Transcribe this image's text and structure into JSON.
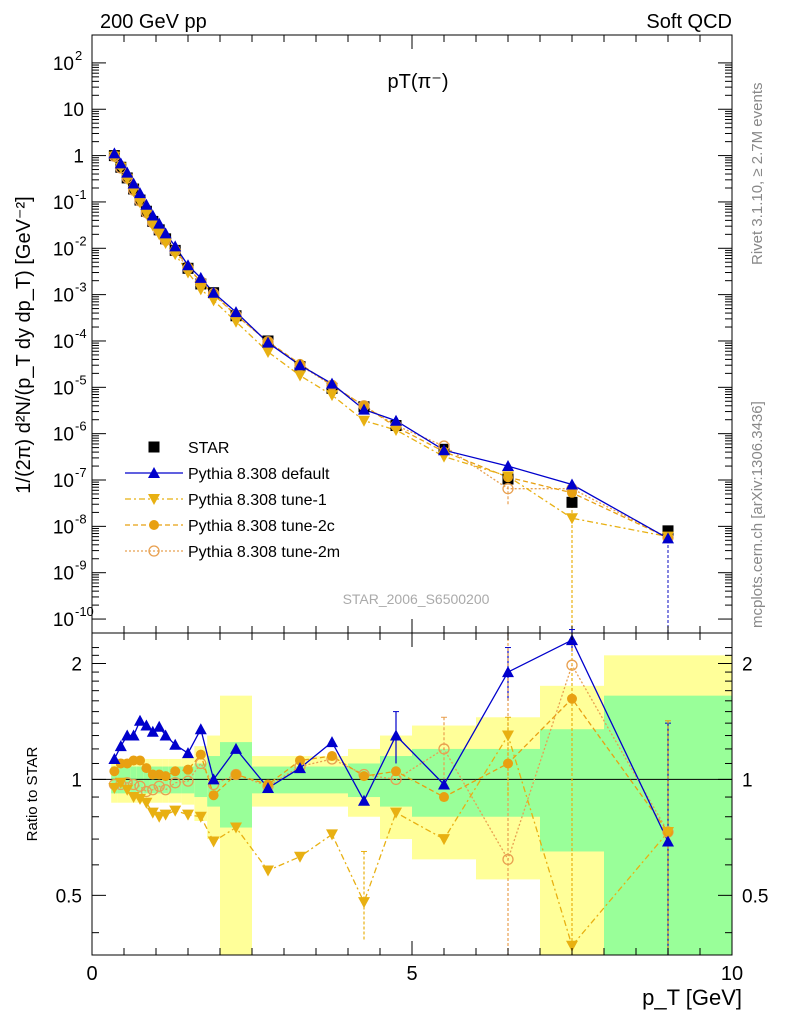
{
  "header": {
    "left": "200 GeV pp",
    "right": "Soft QCD"
  },
  "side_labels": {
    "rivet": "Rivet 3.1.10, ≥ 2.7M events",
    "mcplots": "mcplots.cern.ch [arXiv:1306.3436]"
  },
  "watermark": "STAR_2006_S6500200",
  "chart_data": [
    {
      "type": "scatter",
      "panel": "main",
      "title": "pT(π⁻)",
      "ylabel": "1/(2π) d²N/(p_T dy dp_T) [GeV⁻²]",
      "xlabel": "p_T [GeV]",
      "xlim": [
        0,
        10
      ],
      "ylim": [
        5e-11,
        400
      ],
      "yscale": "log",
      "yticks": [
        {
          "label": "10",
          "exp": "-10",
          "value": 1e-10
        },
        {
          "label": "10",
          "exp": "-9",
          "value": 1e-09
        },
        {
          "label": "10",
          "exp": "-8",
          "value": 1e-08
        },
        {
          "label": "10",
          "exp": "-7",
          "value": 1e-07
        },
        {
          "label": "10",
          "exp": "-6",
          "value": 1e-06
        },
        {
          "label": "10",
          "exp": "-5",
          "value": 1e-05
        },
        {
          "label": "10",
          "exp": "-4",
          "value": 0.0001
        },
        {
          "label": "10",
          "exp": "-3",
          "value": 0.001
        },
        {
          "label": "10",
          "exp": "-2",
          "value": 0.01
        },
        {
          "label": "10",
          "exp": "-1",
          "value": 0.1
        },
        {
          "label": "1",
          "exp": "",
          "value": 1
        },
        {
          "label": "10",
          "exp": "",
          "value": 10
        },
        {
          "label": "10",
          "exp": "2",
          "value": 100
        }
      ],
      "x": [
        0.35,
        0.45,
        0.55,
        0.65,
        0.75,
        0.85,
        0.95,
        1.05,
        1.15,
        1.3,
        1.5,
        1.7,
        1.9,
        2.25,
        2.75,
        3.25,
        3.75,
        4.25,
        4.75,
        5.5,
        6.5,
        7.5,
        9.0
      ],
      "series": [
        {
          "name": "STAR",
          "marker": "square",
          "color": "#000000",
          "values": [
            1.0,
            0.56,
            0.33,
            0.19,
            0.11,
            0.063,
            0.038,
            0.025,
            0.016,
            0.009,
            0.0037,
            0.0017,
            0.0011,
            0.00035,
            0.0001,
            2.8e-05,
            9.5e-06,
            3.8e-06,
            1.5e-06,
            4.6e-07,
            1.05e-07,
            3.3e-08,
            8e-09
          ]
        },
        {
          "name": "Pythia 8.308 default",
          "marker": "triangle-up",
          "color": "#0000cc",
          "dash": "",
          "values": [
            1.12,
            0.68,
            0.43,
            0.25,
            0.155,
            0.087,
            0.051,
            0.034,
            0.021,
            0.011,
            0.0043,
            0.0023,
            0.0011,
            0.00042,
            9.2e-05,
            3e-05,
            1.2e-05,
            3.3e-06,
            1.9e-06,
            4.4e-07,
            2e-07,
            8e-08,
            5.5e-09
          ]
        },
        {
          "name": "Pythia 8.308 tune-1",
          "marker": "triangle-down",
          "color": "#e8b012",
          "dash": "6,3,2,3",
          "values": [
            0.95,
            0.55,
            0.31,
            0.17,
            0.098,
            0.055,
            0.031,
            0.02,
            0.013,
            0.0075,
            0.003,
            0.0013,
            0.00075,
            0.00026,
            5.8e-05,
            1.8e-05,
            6.8e-06,
            1.9e-06,
            1.2e-06,
            3.2e-07,
            1.2e-07,
            1.5e-08,
            6e-09
          ]
        },
        {
          "name": "Pythia 8.308 tune-2c",
          "marker": "circle",
          "color": "#e8a012",
          "dash": "5,3",
          "values": [
            1.02,
            0.61,
            0.36,
            0.21,
            0.12,
            0.068,
            0.039,
            0.025,
            0.016,
            0.0095,
            0.0039,
            0.0019,
            0.001,
            0.00036,
            9.7e-05,
            3.2e-05,
            1.1e-05,
            4e-06,
            1.4e-06,
            4.1e-07,
            1.15e-07,
            5.3e-08,
            5.7e-09
          ]
        },
        {
          "name": "Pythia 8.308 tune-2m",
          "marker": "circle-open",
          "color": "#e8a050",
          "dash": "2,2",
          "values": [
            0.97,
            0.54,
            0.33,
            0.18,
            0.105,
            0.059,
            0.036,
            0.024,
            0.015,
            0.0087,
            0.0037,
            0.0019,
            0.00105,
            0.00036,
            9.6e-05,
            3e-05,
            1.1e-05,
            4e-06,
            1.5e-06,
            5.4e-07,
            6.5e-08,
            6.5e-08,
            5.7e-09
          ]
        }
      ],
      "legend_position": "lower-left"
    },
    {
      "type": "scatter",
      "panel": "ratio",
      "ylabel": "Ratio to STAR",
      "xlim": [
        0,
        10
      ],
      "ylim": [
        0.35,
        2.4
      ],
      "yscale": "log",
      "yticks": [
        0.5,
        1,
        2
      ],
      "xticks": [
        0,
        5,
        10
      ],
      "reference_line": 1,
      "bins": [
        [
          0.3,
          0.4
        ],
        [
          0.4,
          0.5
        ],
        [
          0.5,
          0.6
        ],
        [
          0.6,
          0.7
        ],
        [
          0.7,
          0.8
        ],
        [
          0.8,
          0.9
        ],
        [
          0.9,
          1.0
        ],
        [
          1.0,
          1.1
        ],
        [
          1.1,
          1.2
        ],
        [
          1.2,
          1.4
        ],
        [
          1.4,
          1.6
        ],
        [
          1.6,
          1.8
        ],
        [
          1.8,
          2.0
        ],
        [
          2.0,
          2.5
        ],
        [
          2.5,
          3.0
        ],
        [
          3.0,
          3.5
        ],
        [
          3.5,
          4.0
        ],
        [
          4.0,
          4.5
        ],
        [
          4.5,
          5.0
        ],
        [
          5.0,
          6.0
        ],
        [
          6.0,
          7.0
        ],
        [
          7.0,
          8.0
        ],
        [
          8.0,
          10.0
        ]
      ],
      "band_inner": [
        0.08,
        0.08,
        0.08,
        0.08,
        0.08,
        0.08,
        0.08,
        0.08,
        0.08,
        0.08,
        0.08,
        0.1,
        0.15,
        0.25,
        0.08,
        0.08,
        0.08,
        0.1,
        0.15,
        0.2,
        0.2,
        0.35,
        0.65
      ],
      "band_outer": [
        0.13,
        0.13,
        0.13,
        0.13,
        0.13,
        0.13,
        0.13,
        0.13,
        0.13,
        0.13,
        0.14,
        0.22,
        0.3,
        0.65,
        0.15,
        0.15,
        0.15,
        0.2,
        0.3,
        0.38,
        0.45,
        0.75,
        1.1
      ],
      "series": [
        {
          "name": "Pythia 8.308 default",
          "color": "#0000cc",
          "values": [
            1.13,
            1.22,
            1.3,
            1.3,
            1.42,
            1.38,
            1.33,
            1.37,
            1.3,
            1.23,
            1.17,
            1.35,
            1.0,
            1.2,
            0.95,
            1.07,
            1.25,
            0.88,
            1.3,
            0.97,
            1.9,
            2.3,
            0.69
          ]
        },
        {
          "name": "Pythia 8.308 tune-1",
          "color": "#e8b012",
          "values": [
            0.95,
            0.98,
            0.94,
            0.9,
            0.89,
            0.87,
            0.82,
            0.8,
            0.81,
            0.83,
            0.81,
            0.8,
            0.69,
            0.75,
            0.58,
            0.63,
            0.72,
            0.48,
            0.82,
            0.7,
            1.3,
            0.37,
            0.73
          ]
        },
        {
          "name": "Pythia 8.308 tune-2c",
          "color": "#e8a012",
          "values": [
            1.05,
            1.1,
            1.1,
            1.12,
            1.12,
            1.07,
            1.03,
            1.03,
            1.02,
            1.05,
            1.06,
            1.16,
            0.91,
            1.03,
            0.97,
            1.12,
            1.15,
            1.02,
            1.05,
            0.9,
            1.1,
            1.62,
            0.73
          ]
        },
        {
          "name": "Pythia 8.308 tune-2m",
          "color": "#e8a050",
          "values": [
            0.97,
            0.97,
            0.98,
            0.97,
            0.96,
            0.93,
            0.94,
            0.96,
            0.94,
            0.98,
            0.99,
            1.1,
            0.97,
            1.03,
            0.96,
            1.08,
            1.13,
            1.03,
            1.0,
            1.2,
            0.62,
            1.98,
            0.73
          ]
        }
      ],
      "error_bars": [
        {
          "series": 0,
          "bin": 18,
          "up": 1.5,
          "down": 1.1
        },
        {
          "series": 0,
          "bin": 20,
          "up": 2.2,
          "down": 1.6
        },
        {
          "series": 0,
          "bin": 21,
          "up": 2.45,
          "down": 2.15
        },
        {
          "series": 0,
          "bin": 22,
          "up": 1.4,
          "down": 0.35
        },
        {
          "series": 2,
          "bin": 22,
          "up": 1.42,
          "down": 0.35
        },
        {
          "series": 1,
          "bin": 21,
          "up": 2.4,
          "down": 0.35
        },
        {
          "series": 3,
          "bin": 20,
          "up": 2.4,
          "down": 0.35
        },
        {
          "series": 1,
          "bin": 20,
          "up": 1.45,
          "down": 0.9
        },
        {
          "series": 1,
          "bin": 17,
          "up": 0.65,
          "down": 0.38
        },
        {
          "series": 3,
          "bin": 19,
          "up": 1.45,
          "down": 1.0
        }
      ]
    }
  ]
}
